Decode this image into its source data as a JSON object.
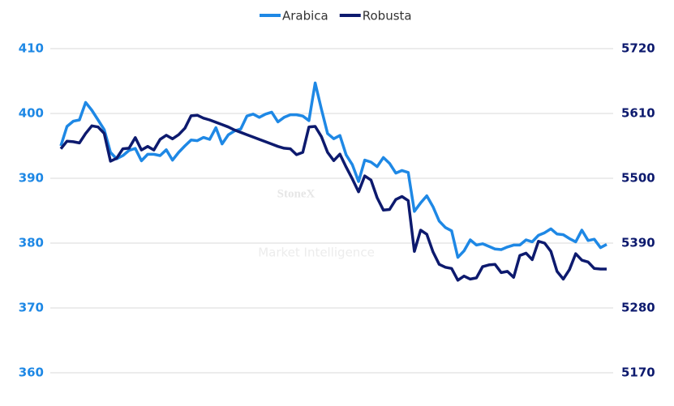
{
  "chart_data": {
    "type": "line",
    "watermark": {
      "title": "StoneX",
      "subtitle": "Market Intelligence"
    },
    "series": [
      {
        "name": "Arabica",
        "color": "#1e88e5",
        "axis": "y",
        "values": [
          395,
          398,
          398.8,
          399,
          401.7,
          400.5,
          399,
          397.5,
          394,
          393,
          393.5,
          394.3,
          394.6,
          392.7,
          393.7,
          393.7,
          393.5,
          394.4,
          392.8,
          394,
          395,
          395.9,
          395.8,
          396.3,
          396,
          397.8,
          395.3,
          396.7,
          397.3,
          397.6,
          399.6,
          399.9,
          399.4,
          399.9,
          400.2,
          398.7,
          399.4,
          399.8,
          399.8,
          399.6,
          398.9,
          404.7,
          400.7,
          396.9,
          396.1,
          396.6,
          393.6,
          392.1,
          389.5,
          392.8,
          392.5,
          391.8,
          393.2,
          392.3,
          390.8,
          391.2,
          390.9,
          384.9,
          386.2,
          387.3,
          385.6,
          383.4,
          382.4,
          381.9,
          377.8,
          378.8,
          380.5,
          379.7,
          379.9,
          379.5,
          379.1,
          379,
          379.4,
          379.7,
          379.7,
          380.5,
          380.2,
          381.2,
          381.6,
          382.2,
          381.4,
          381.3,
          380.7,
          380.2,
          382,
          380.4,
          380.6,
          379.3,
          379.8
        ]
      },
      {
        "name": "Robusta",
        "color": "#0d1a6e",
        "axis": "y2",
        "values": [
          5550,
          5563,
          5562,
          5560,
          5576,
          5589,
          5587,
          5576,
          5529,
          5534,
          5550,
          5551,
          5569,
          5548,
          5554,
          5548,
          5566,
          5573,
          5567,
          5574,
          5585,
          5606,
          5607,
          5602,
          5599,
          5595,
          5591,
          5587,
          5582,
          5578,
          5574,
          5570,
          5566,
          5562,
          5558,
          5554,
          5551,
          5550,
          5540,
          5544,
          5587,
          5588,
          5571,
          5544,
          5530,
          5541,
          5519,
          5499,
          5477,
          5504,
          5497,
          5467,
          5446,
          5447,
          5464,
          5469,
          5462,
          5376,
          5412,
          5405,
          5375,
          5354,
          5349,
          5347,
          5327,
          5334,
          5329,
          5331,
          5350,
          5353,
          5354,
          5340,
          5342,
          5332,
          5369,
          5373,
          5362,
          5393,
          5390,
          5376,
          5342,
          5329,
          5345,
          5372,
          5361,
          5358,
          5347,
          5346,
          5346
        ]
      }
    ],
    "ylim": [
      360,
      410
    ],
    "yticks": [
      360,
      370,
      380,
      390,
      400,
      410
    ],
    "y2lim": [
      5170,
      5720
    ],
    "y2ticks": [
      5170,
      5280,
      5390,
      5500,
      5610,
      5720
    ],
    "grid": true,
    "legend": "top"
  }
}
